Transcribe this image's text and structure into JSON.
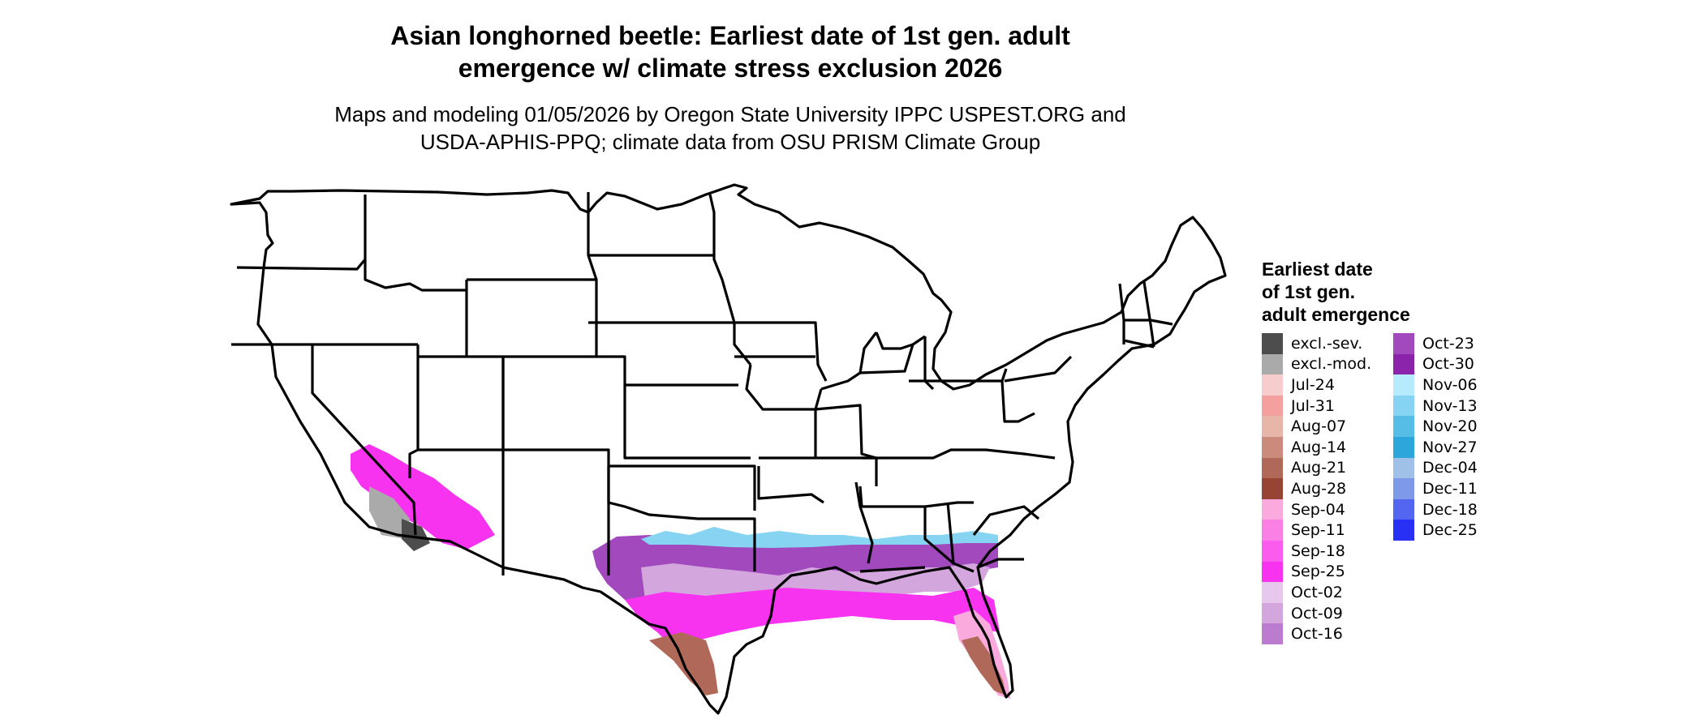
{
  "title": {
    "line1": "Asian longhorned beetle: Earliest date of 1st gen. adult",
    "line2": "emergence w/ climate stress exclusion 2026"
  },
  "subtitle": {
    "line1": "Maps and modeling 01/05/2026 by Oregon State University IPPC USPEST.ORG and",
    "line2": "USDA-APHIS-PPQ; climate data from OSU PRISM Climate Group"
  },
  "legend": {
    "title_lines": [
      "Earliest date",
      "of 1st gen.",
      "adult emergence"
    ],
    "items": [
      {
        "label": "excl.-sev.",
        "color": "#4d4d4d"
      },
      {
        "label": "excl.-mod.",
        "color": "#aaaaaa"
      },
      {
        "label": "Jul-24",
        "color": "#f6cccc"
      },
      {
        "label": "Jul-31",
        "color": "#f4a0a0"
      },
      {
        "label": "Aug-07",
        "color": "#e7b5a9"
      },
      {
        "label": "Aug-14",
        "color": "#cb8b7c"
      },
      {
        "label": "Aug-21",
        "color": "#b06858"
      },
      {
        "label": "Aug-28",
        "color": "#964535"
      },
      {
        "label": "Sep-04",
        "color": "#fbaade"
      },
      {
        "label": "Sep-11",
        "color": "#fa80e6"
      },
      {
        "label": "Sep-18",
        "color": "#fa5cee"
      },
      {
        "label": "Sep-25",
        "color": "#f833f0"
      },
      {
        "label": "Oct-02",
        "color": "#e7c8ec"
      },
      {
        "label": "Oct-09",
        "color": "#d3a6dd"
      },
      {
        "label": "Oct-16",
        "color": "#bb7ccf"
      },
      {
        "label": "Oct-23",
        "color": "#a149bd"
      },
      {
        "label": "Oct-30",
        "color": "#8c23ab"
      },
      {
        "label": "Nov-06",
        "color": "#b5ebfd"
      },
      {
        "label": "Nov-13",
        "color": "#86d4f1"
      },
      {
        "label": "Nov-20",
        "color": "#55bde6"
      },
      {
        "label": "Nov-27",
        "color": "#2ca6db"
      },
      {
        "label": "Dec-04",
        "color": "#9fc1e8"
      },
      {
        "label": "Dec-11",
        "color": "#7f99ea"
      },
      {
        "label": "Dec-18",
        "color": "#5266ef"
      },
      {
        "label": "Dec-25",
        "color": "#2830f5"
      }
    ]
  },
  "map": {
    "region": "Contiguous United States",
    "border_color": "#000000",
    "fill_color": "#ffffff",
    "emergence_zones": [
      {
        "region": "southern California / Arizona desert",
        "color_key": "Sep-25"
      },
      {
        "region": "southern California / Arizona desert",
        "color_key": "excl.-mod."
      },
      {
        "region": "southern California / Arizona desert",
        "color_key": "excl.-sev."
      },
      {
        "region": "Gulf Coast inland band",
        "color_key": "Oct-23"
      },
      {
        "region": "Gulf Coast inland band",
        "color_key": "Oct-09"
      },
      {
        "region": "Gulf Coast inland fringe",
        "color_key": "Nov-13"
      },
      {
        "region": "Gulf Coast",
        "color_key": "Sep-25"
      },
      {
        "region": "South Texas",
        "color_key": "Aug-21"
      },
      {
        "region": "Florida peninsula",
        "color_key": "Sep-04"
      },
      {
        "region": "Florida peninsula",
        "color_key": "Aug-21"
      }
    ]
  }
}
